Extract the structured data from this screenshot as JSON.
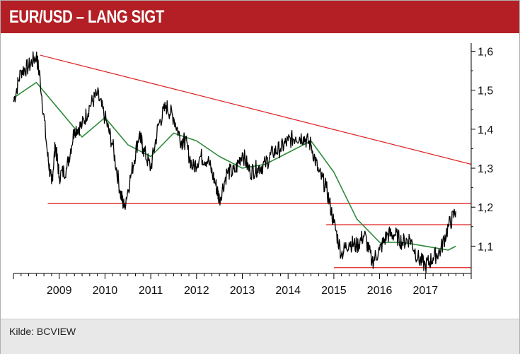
{
  "header": {
    "title": "EUR/USD – LANG SIGT"
  },
  "footer": {
    "source": "Kilde: BCVIEW"
  },
  "colors": {
    "header_bg": "#b31f24",
    "price_line": "#000000",
    "moving_average": "#2e8b3a",
    "support_resistance": "#e02020"
  },
  "chart_data": {
    "type": "line",
    "title": "EUR/USD – LANG SIGT",
    "xlabel": "",
    "ylabel": "",
    "xlim": [
      "2008-01",
      "2017-12"
    ],
    "ylim": [
      1.03,
      1.61
    ],
    "x_ticks": [
      "2009",
      "2010",
      "2011",
      "2012",
      "2013",
      "2014",
      "2015",
      "2016",
      "2017"
    ],
    "y_ticks": [
      "1,1",
      "1,2",
      "1,3",
      "1,4",
      "1,5",
      "1,6"
    ],
    "y_tick_values": [
      1.1,
      1.2,
      1.3,
      1.4,
      1.5,
      1.6
    ],
    "grid": false,
    "legend": "none",
    "series": [
      {
        "x": [
          "2008-01",
          "2008-03",
          "2008-05",
          "2008-07",
          "2008-08",
          "2008-10",
          "2008-11",
          "2008-12",
          "2009-01",
          "2009-03",
          "2009-05",
          "2009-07",
          "2009-09",
          "2009-11",
          "2010-01",
          "2010-03",
          "2010-05",
          "2010-06",
          "2010-08",
          "2010-10",
          "2010-11",
          "2011-01",
          "2011-03",
          "2011-05",
          "2011-07",
          "2011-09",
          "2011-10",
          "2011-12",
          "2012-02",
          "2012-04",
          "2012-06",
          "2012-07",
          "2012-09",
          "2012-11",
          "2013-01",
          "2013-03",
          "2013-05",
          "2013-07",
          "2013-09",
          "2013-11",
          "2014-01",
          "2014-03",
          "2014-05",
          "2014-07",
          "2014-09",
          "2014-11",
          "2015-01",
          "2015-03",
          "2015-05",
          "2015-07",
          "2015-09",
          "2015-11",
          "2016-01",
          "2016-03",
          "2016-05",
          "2016-07",
          "2016-09",
          "2016-11",
          "2017-01",
          "2017-03",
          "2017-05",
          "2017-07",
          "2017-09"
        ],
        "values": [
          1.47,
          1.55,
          1.56,
          1.59,
          1.53,
          1.33,
          1.26,
          1.36,
          1.28,
          1.3,
          1.4,
          1.41,
          1.46,
          1.49,
          1.43,
          1.36,
          1.24,
          1.2,
          1.29,
          1.39,
          1.35,
          1.3,
          1.41,
          1.46,
          1.43,
          1.37,
          1.37,
          1.3,
          1.33,
          1.32,
          1.26,
          1.22,
          1.29,
          1.29,
          1.34,
          1.29,
          1.3,
          1.31,
          1.34,
          1.35,
          1.37,
          1.38,
          1.38,
          1.36,
          1.29,
          1.25,
          1.16,
          1.08,
          1.11,
          1.1,
          1.13,
          1.06,
          1.09,
          1.13,
          1.13,
          1.11,
          1.12,
          1.07,
          1.05,
          1.07,
          1.09,
          1.15,
          1.19
        ]
      },
      {
        "x": [
          "2008-01",
          "2008-07",
          "2009-01",
          "2009-07",
          "2010-01",
          "2010-07",
          "2011-01",
          "2011-07",
          "2012-01",
          "2012-07",
          "2013-01",
          "2013-07",
          "2014-01",
          "2014-07",
          "2015-01",
          "2015-07",
          "2016-01",
          "2016-07",
          "2017-01",
          "2017-07",
          "2017-09"
        ],
        "values": [
          1.48,
          1.52,
          1.45,
          1.38,
          1.43,
          1.36,
          1.33,
          1.39,
          1.37,
          1.33,
          1.3,
          1.31,
          1.34,
          1.37,
          1.29,
          1.17,
          1.11,
          1.11,
          1.1,
          1.09,
          1.1
        ]
      }
    ],
    "hlines": [
      {
        "y": 1.21,
        "x_start": "2008-10",
        "x_end": "2017-12"
      },
      {
        "y": 1.155,
        "x_start": "2014-11",
        "x_end": "2017-12"
      },
      {
        "y": 1.045,
        "x_start": "2015-01",
        "x_end": "2017-12"
      }
    ],
    "trendline": {
      "x": [
        "2008-08",
        "2017-12"
      ],
      "y": [
        1.59,
        1.31
      ]
    }
  }
}
